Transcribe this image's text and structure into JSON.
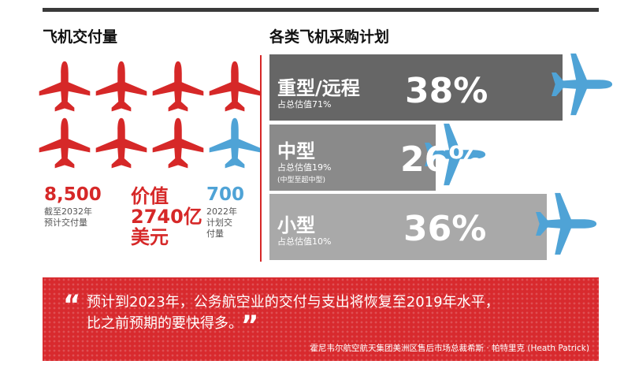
{
  "left": {
    "heading": "飞机交付量",
    "planes": {
      "total": 8,
      "highlighted_index": 7,
      "main_color": "#d62828",
      "highlight_color": "#4fa3d6"
    },
    "stats": [
      {
        "value": "8,500",
        "note_lines": [
          "截至2032年",
          "预计交付量"
        ],
        "color": "#d62828"
      },
      {
        "value_lines": [
          "价值",
          "2740亿",
          "美元"
        ],
        "color": "#d62828"
      },
      {
        "value": "700",
        "note_lines": [
          "2022年",
          "计划交",
          "付量"
        ],
        "color": "#4fa3d6"
      }
    ]
  },
  "chart_data": {
    "type": "bar",
    "title": "各类飞机采购计划",
    "categories": [
      "重型/远程",
      "中型",
      "小型"
    ],
    "values": [
      38,
      26,
      36
    ],
    "value_labels": [
      "38%",
      "26%",
      "36%"
    ],
    "subtitles": [
      "占总估值71%",
      "占总估值19%",
      "占总估值10%"
    ],
    "notes": [
      "",
      "(中型至超中型)",
      ""
    ],
    "colors": [
      "#666666",
      "#8a8a8a",
      "#a9a9a9"
    ],
    "plane_color": "#4fa3d6"
  },
  "quote": {
    "lines": [
      "预计到2023年，公务航空业的交付与支出将恢复至2019年水平，",
      "比之前预期的要快得多。"
    ],
    "open_mark": "“",
    "close_mark": "”",
    "attribution": "霍尼韦尔航空航天集团美洲区售后市场总裁希斯 · 帕特里克 (Heath Patrick)",
    "background": "#d82a2e"
  }
}
